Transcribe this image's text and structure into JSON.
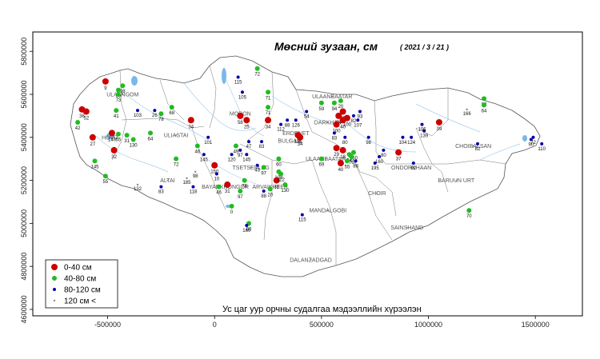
{
  "title": "Мөсний зузаан, см",
  "date": "( 2021 / 3 / 21 )",
  "caption": "Ус цаг уур орчны судалгаа мэдээллийн хүрээлэн",
  "axes": {
    "x_ticks": [
      "-500000",
      "0",
      "500000",
      "1000000",
      "1500000"
    ],
    "y_ticks": [
      "4600000",
      "4800000",
      "5000000",
      "5200000",
      "5400000",
      "5600000",
      "5800000"
    ]
  },
  "legend": [
    {
      "label": "0-40 см",
      "color": "#cc0000",
      "symbol": "large-dot"
    },
    {
      "label": "40-80 см",
      "color": "#22bb22",
      "symbol": "dot"
    },
    {
      "label": "80-120 см",
      "color": "#0000aa",
      "symbol": "small-dot"
    },
    {
      "label": "120 см <",
      "color": "#888888",
      "symbol": "tiny-dot"
    }
  ],
  "colors": {
    "c1": "#cc0000",
    "c2": "#22bb22",
    "c3": "#0000aa",
    "c4": "#888888",
    "water": "#7ab8e8",
    "border": "#666666"
  },
  "cities": [
    {
      "name": "ULAANBAATAR",
      "x": 550000,
      "y": 5590000
    },
    {
      "name": "ULAANGOM",
      "x": -430000,
      "y": 5600000
    },
    {
      "name": "MORON",
      "x": 120000,
      "y": 5510000
    },
    {
      "name": "ERDENET",
      "x": 380000,
      "y": 5420000
    },
    {
      "name": "BULGAN",
      "x": 350000,
      "y": 5385000
    },
    {
      "name": "DARKHAN",
      "x": 530000,
      "y": 5470000
    },
    {
      "name": "HOVD",
      "x": -490000,
      "y": 5400000
    },
    {
      "name": "ULIASTAI",
      "x": -180000,
      "y": 5410000
    },
    {
      "name": "ULAANBAATAR",
      "x": 520000,
      "y": 5300000
    },
    {
      "name": "TSETSERLEG",
      "x": 170000,
      "y": 5260000
    },
    {
      "name": "BAYANKHONGOR",
      "x": 50000,
      "y": 5170000
    },
    {
      "name": "ARVAIKHEER",
      "x": 260000,
      "y": 5170000
    },
    {
      "name": "ALTAI",
      "x": -220000,
      "y": 5200000
    },
    {
      "name": "MANDALGOBI",
      "x": 530000,
      "y": 5060000
    },
    {
      "name": "SAINSHAND",
      "x": 900000,
      "y": 4980000
    },
    {
      "name": "DALANZADGAD",
      "x": 450000,
      "y": 4830000
    },
    {
      "name": "ONDORKHAAN",
      "x": 920000,
      "y": 5260000
    },
    {
      "name": "CHOIBALSAN",
      "x": 1210000,
      "y": 5360000
    },
    {
      "name": "BARUUN URT",
      "x": 1130000,
      "y": 5200000
    },
    {
      "name": "CHOIR",
      "x": 760000,
      "y": 5140000
    }
  ],
  "chart_data": {
    "type": "scatter",
    "title": "Мөсний зузаан, см",
    "subtitle": "( 2021 / 3 / 21 )",
    "xlim": [
      -850000,
      1720000
    ],
    "ylim": [
      4570000,
      5890000
    ],
    "x_ticks": [
      -500000,
      0,
      500000,
      1000000,
      1500000
    ],
    "y_ticks": [
      4600000,
      4800000,
      5000000,
      5200000,
      5400000,
      5600000,
      5800000
    ],
    "legend_position": "bottom-left",
    "grid": false,
    "classes": [
      "0-40 см",
      "40-80 см",
      "80-120 см",
      "120 см <"
    ],
    "points": [
      {
        "x": -510000,
        "y": 5660000,
        "value": "9",
        "class": 1
      },
      {
        "x": -430000,
        "y": 5640000,
        "value": "98",
        "class": 2
      },
      {
        "x": -450000,
        "y": 5620000,
        "value": "69",
        "class": 2
      },
      {
        "x": -450000,
        "y": 5600000,
        "value": "73",
        "class": 2
      },
      {
        "x": -620000,
        "y": 5530000,
        "value": "36",
        "class": 1
      },
      {
        "x": -600000,
        "y": 5520000,
        "value": "52",
        "class": 1
      },
      {
        "x": -640000,
        "y": 5470000,
        "value": "42",
        "class": 2
      },
      {
        "x": -460000,
        "y": 5525000,
        "value": "41",
        "class": 2
      },
      {
        "x": -360000,
        "y": 5525000,
        "value": "103",
        "class": 3
      },
      {
        "x": -280000,
        "y": 5525000,
        "value": "26",
        "class": 3
      },
      {
        "x": -250000,
        "y": 5510000,
        "value": "78",
        "class": 2
      },
      {
        "x": -200000,
        "y": 5540000,
        "value": "68",
        "class": 2
      },
      {
        "x": -110000,
        "y": 5480000,
        "value": "34",
        "class": 1
      },
      {
        "x": -570000,
        "y": 5400000,
        "value": "27",
        "class": 1
      },
      {
        "x": -480000,
        "y": 5420000,
        "value": "140",
        "class": 1
      },
      {
        "x": -450000,
        "y": 5415000,
        "value": "55",
        "class": 2
      },
      {
        "x": -410000,
        "y": 5410000,
        "value": "31",
        "class": 2
      },
      {
        "x": -380000,
        "y": 5390000,
        "value": "130",
        "class": 2
      },
      {
        "x": -470000,
        "y": 5340000,
        "value": "32",
        "class": 1
      },
      {
        "x": -560000,
        "y": 5290000,
        "value": "145",
        "class": 2
      },
      {
        "x": -510000,
        "y": 5220000,
        "value": "55",
        "class": 2
      },
      {
        "x": -360000,
        "y": 5180000,
        "value": "132",
        "class": 4
      },
      {
        "x": -300000,
        "y": 5420000,
        "value": "64",
        "class": 2
      },
      {
        "x": -180000,
        "y": 5300000,
        "value": "72",
        "class": 2
      },
      {
        "x": -80000,
        "y": 5360000,
        "value": "46",
        "class": 2
      },
      {
        "x": -30000,
        "y": 5400000,
        "value": "101",
        "class": 3
      },
      {
        "x": -50000,
        "y": 5320000,
        "value": "145",
        "class": 3
      },
      {
        "x": -130000,
        "y": 5210000,
        "value": "185",
        "class": 4
      },
      {
        "x": -90000,
        "y": 5240000,
        "value": "98",
        "class": 4
      },
      {
        "x": -250000,
        "y": 5170000,
        "value": "83",
        "class": 3
      },
      {
        "x": -100000,
        "y": 5170000,
        "value": "118",
        "class": 3
      },
      {
        "x": 0,
        "y": 5270000,
        "value": "150",
        "class": 1
      },
      {
        "x": 10000,
        "y": 5230000,
        "value": "10",
        "class": 3
      },
      {
        "x": 20000,
        "y": 5170000,
        "value": "46",
        "class": 2
      },
      {
        "x": 60000,
        "y": 5180000,
        "value": "31",
        "class": 1
      },
      {
        "x": 100000,
        "y": 5360000,
        "value": "49",
        "class": 2
      },
      {
        "x": 80000,
        "y": 5320000,
        "value": "120",
        "class": 3
      },
      {
        "x": 120000,
        "y": 5340000,
        "value": "97",
        "class": 3
      },
      {
        "x": 150000,
        "y": 5320000,
        "value": "145",
        "class": 3
      },
      {
        "x": 160000,
        "y": 5380000,
        "value": "47",
        "class": 3
      },
      {
        "x": 120000,
        "y": 5500000,
        "value": "58",
        "class": 1
      },
      {
        "x": 150000,
        "y": 5480000,
        "value": "25",
        "class": 1
      },
      {
        "x": 130000,
        "y": 5610000,
        "value": "105",
        "class": 3
      },
      {
        "x": 110000,
        "y": 5680000,
        "value": "115",
        "class": 3
      },
      {
        "x": 200000,
        "y": 5720000,
        "value": "72",
        "class": 2
      },
      {
        "x": 250000,
        "y": 5610000,
        "value": "71",
        "class": 2
      },
      {
        "x": 250000,
        "y": 5540000,
        "value": "71",
        "class": 2
      },
      {
        "x": 250000,
        "y": 5480000,
        "value": "34",
        "class": 1
      },
      {
        "x": 220000,
        "y": 5380000,
        "value": "83",
        "class": 3
      },
      {
        "x": 200000,
        "y": 5270000,
        "value": "43",
        "class": 3
      },
      {
        "x": 230000,
        "y": 5260000,
        "value": "97",
        "class": 2
      },
      {
        "x": 300000,
        "y": 5300000,
        "value": "60",
        "class": 2
      },
      {
        "x": 300000,
        "y": 5240000,
        "value": "108",
        "class": 2
      },
      {
        "x": 290000,
        "y": 5200000,
        "value": "30",
        "class": 1
      },
      {
        "x": 310000,
        "y": 5230000,
        "value": "112",
        "class": 2
      },
      {
        "x": 330000,
        "y": 5180000,
        "value": "130",
        "class": 2
      },
      {
        "x": 260000,
        "y": 5160000,
        "value": "20",
        "class": 2
      },
      {
        "x": 230000,
        "y": 5150000,
        "value": "88",
        "class": 3
      },
      {
        "x": 140000,
        "y": 5200000,
        "value": "78",
        "class": 2
      },
      {
        "x": 120000,
        "y": 5150000,
        "value": "97",
        "class": 2
      },
      {
        "x": 80000,
        "y": 5080000,
        "value": "0",
        "class": 2
      },
      {
        "x": 160000,
        "y": 5000000,
        "value": "80",
        "class": 2
      },
      {
        "x": 150000,
        "y": 4990000,
        "value": "160",
        "class": 3
      },
      {
        "x": 410000,
        "y": 5040000,
        "value": "115",
        "class": 3
      },
      {
        "x": 310000,
        "y": 5460000,
        "value": "112",
        "class": 3
      },
      {
        "x": 340000,
        "y": 5480000,
        "value": "88",
        "class": 3
      },
      {
        "x": 380000,
        "y": 5480000,
        "value": "126",
        "class": 3
      },
      {
        "x": 390000,
        "y": 5410000,
        "value": "135",
        "class": 1
      },
      {
        "x": 400000,
        "y": 5400000,
        "value": "34",
        "class": 1
      },
      {
        "x": 430000,
        "y": 5520000,
        "value": "54",
        "class": 3
      },
      {
        "x": 500000,
        "y": 5560000,
        "value": "59",
        "class": 2
      },
      {
        "x": 560000,
        "y": 5560000,
        "value": "94",
        "class": 2
      },
      {
        "x": 590000,
        "y": 5570000,
        "value": "20",
        "class": 2
      },
      {
        "x": 600000,
        "y": 5520000,
        "value": "90",
        "class": 1
      },
      {
        "x": 580000,
        "y": 5500000,
        "value": "34",
        "class": 1
      },
      {
        "x": 620000,
        "y": 5490000,
        "value": "100",
        "class": 1
      },
      {
        "x": 570000,
        "y": 5460000,
        "value": "100",
        "class": 1
      },
      {
        "x": 600000,
        "y": 5480000,
        "value": "40",
        "class": 1
      },
      {
        "x": 650000,
        "y": 5500000,
        "value": "82",
        "class": 3
      },
      {
        "x": 670000,
        "y": 5480000,
        "value": "107",
        "class": 3
      },
      {
        "x": 680000,
        "y": 5520000,
        "value": "93",
        "class": 3
      },
      {
        "x": 720000,
        "y": 5400000,
        "value": "98",
        "class": 3
      },
      {
        "x": 560000,
        "y": 5420000,
        "value": "83",
        "class": 3
      },
      {
        "x": 610000,
        "y": 5400000,
        "value": "80",
        "class": 3
      },
      {
        "x": 570000,
        "y": 5350000,
        "value": "29",
        "class": 1
      },
      {
        "x": 600000,
        "y": 5340000,
        "value": "18",
        "class": 1
      },
      {
        "x": 630000,
        "y": 5320000,
        "value": "54",
        "class": 2
      },
      {
        "x": 650000,
        "y": 5330000,
        "value": "150",
        "class": 2
      },
      {
        "x": 640000,
        "y": 5310000,
        "value": "76",
        "class": 2
      },
      {
        "x": 620000,
        "y": 5290000,
        "value": "55",
        "class": 2
      },
      {
        "x": 660000,
        "y": 5290000,
        "value": "88",
        "class": 3
      },
      {
        "x": 590000,
        "y": 5280000,
        "value": "40",
        "class": 1
      },
      {
        "x": 500000,
        "y": 5300000,
        "value": "69",
        "class": 2
      },
      {
        "x": 770000,
        "y": 5310000,
        "value": "160",
        "class": 3
      },
      {
        "x": 750000,
        "y": 5280000,
        "value": "195",
        "class": 3
      },
      {
        "x": 790000,
        "y": 5340000,
        "value": "80",
        "class": 3
      },
      {
        "x": 860000,
        "y": 5330000,
        "value": "37",
        "class": 1
      },
      {
        "x": 930000,
        "y": 5280000,
        "value": "92",
        "class": 3
      },
      {
        "x": 880000,
        "y": 5400000,
        "value": "104",
        "class": 3
      },
      {
        "x": 920000,
        "y": 5400000,
        "value": "124",
        "class": 3
      },
      {
        "x": 980000,
        "y": 5430000,
        "value": "139",
        "class": 3
      },
      {
        "x": 970000,
        "y": 5460000,
        "value": "106",
        "class": 3
      },
      {
        "x": 1050000,
        "y": 5470000,
        "value": "39",
        "class": 1
      },
      {
        "x": 1180000,
        "y": 5530000,
        "value": "166",
        "class": 4
      },
      {
        "x": 1260000,
        "y": 5580000,
        "value": "83",
        "class": 2
      },
      {
        "x": 1260000,
        "y": 5550000,
        "value": "64",
        "class": 2
      },
      {
        "x": 1230000,
        "y": 5370000,
        "value": "82",
        "class": 3
      },
      {
        "x": 1480000,
        "y": 5390000,
        "value": "90",
        "class": 3
      },
      {
        "x": 1490000,
        "y": 5400000,
        "value": "72",
        "class": 3
      },
      {
        "x": 1530000,
        "y": 5370000,
        "value": "110",
        "class": 3
      },
      {
        "x": 1190000,
        "y": 5060000,
        "value": "70",
        "class": 2
      }
    ]
  }
}
